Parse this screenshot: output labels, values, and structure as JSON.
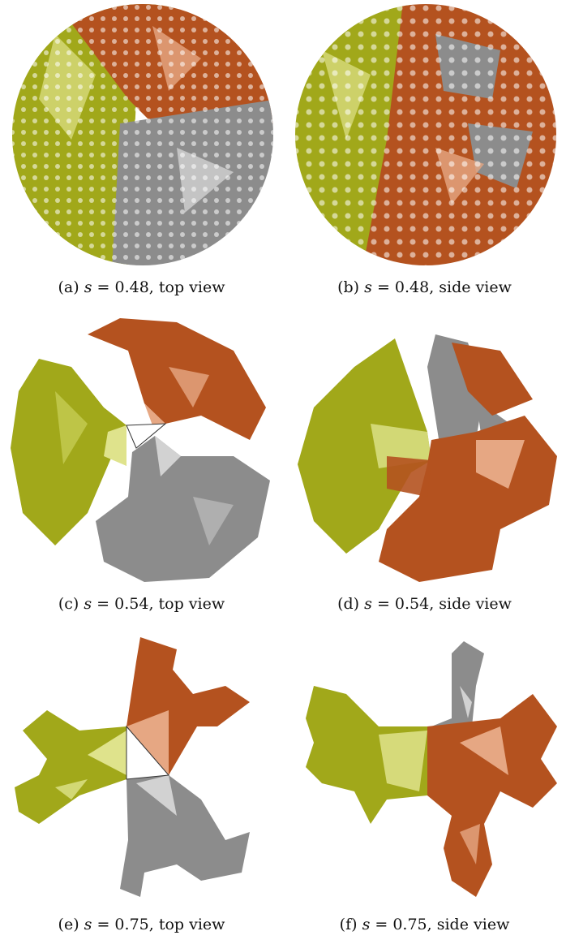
{
  "figure": {
    "colors": {
      "olive": "#9fa617",
      "olive_light": "#dfe38c",
      "copper": "#b4521f",
      "copper_light": "#e6a783",
      "gray": "#8a8a8a",
      "gray_light": "#cfcfcf"
    },
    "panels": [
      {
        "label": "(a)",
        "var": "s",
        "eq": " = 0.48, ",
        "view": "top view"
      },
      {
        "label": "(b)",
        "var": "s",
        "eq": " = 0.48, ",
        "view": "side view"
      },
      {
        "label": "(c)",
        "var": "s",
        "eq": " = 0.54, ",
        "view": "top view"
      },
      {
        "label": "(d)",
        "var": "s",
        "eq": " = 0.54, ",
        "view": "side view"
      },
      {
        "label": "(e)",
        "var": "s",
        "eq": " = 0.75, ",
        "view": "top view"
      },
      {
        "label": "(f)",
        "var": "s",
        "eq": " = 0.75, ",
        "view": "side view"
      }
    ]
  }
}
